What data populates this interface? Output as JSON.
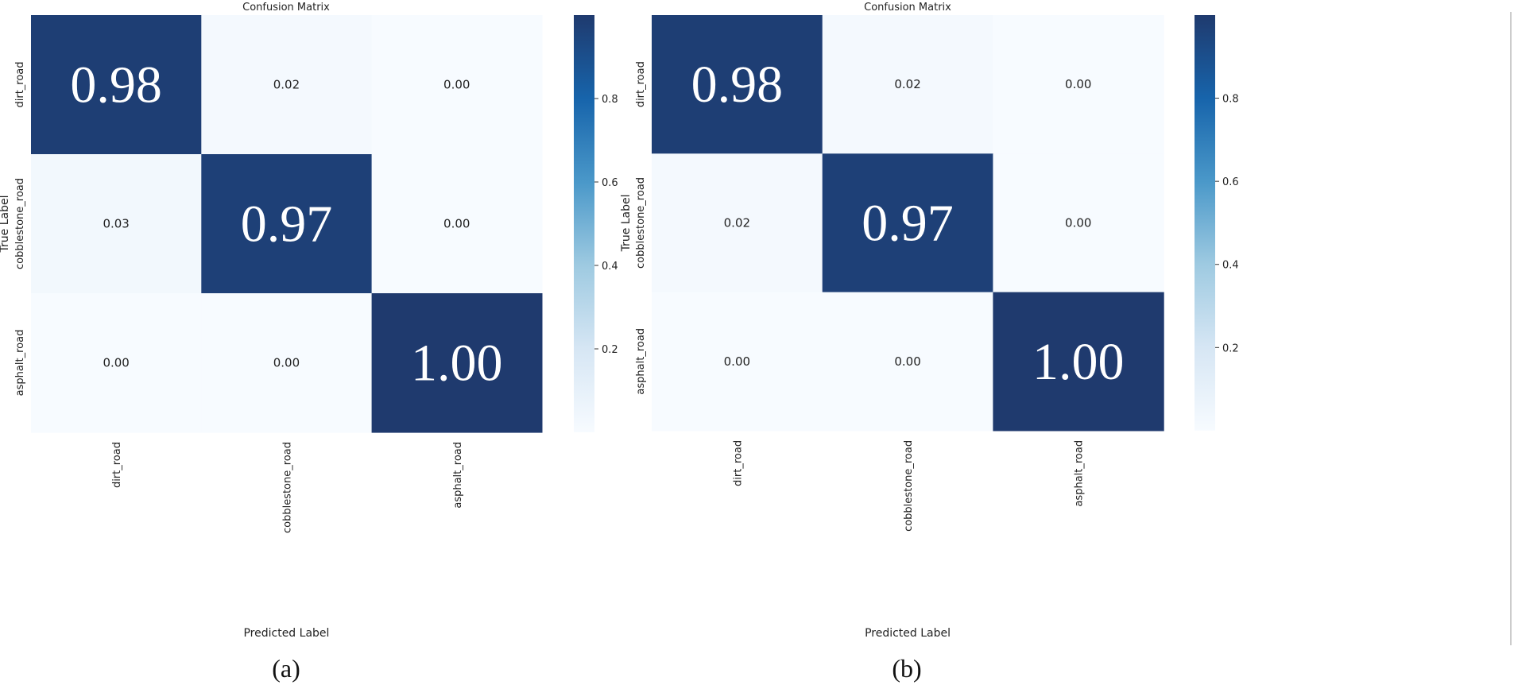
{
  "chart_data": [
    {
      "type": "heatmap",
      "title": "Confusion Matrix",
      "xlabel": "Predicted Label",
      "ylabel": "True Label",
      "x_categories": [
        "dirt_road",
        "cobblestone_road",
        "asphalt_road"
      ],
      "y_categories": [
        "dirt_road",
        "cobblestone_road",
        "asphalt_road"
      ],
      "values": [
        [
          0.98,
          0.02,
          0.0
        ],
        [
          0.03,
          0.97,
          0.0
        ],
        [
          0.0,
          0.0,
          1.0
        ]
      ],
      "colorbar": {
        "range": [
          0,
          1
        ],
        "ticks": [
          0.2,
          0.4,
          0.6,
          0.8
        ],
        "colormap": "Blues"
      },
      "caption": "(a)"
    },
    {
      "type": "heatmap",
      "title": "Confusion Matrix",
      "xlabel": "Predicted Label",
      "ylabel": "True Label",
      "x_categories": [
        "dirt_road",
        "cobblestone_road",
        "asphalt_road"
      ],
      "y_categories": [
        "dirt_road",
        "cobblestone_road",
        "asphalt_road"
      ],
      "values": [
        [
          0.98,
          0.02,
          0.0
        ],
        [
          0.02,
          0.97,
          0.0
        ],
        [
          0.0,
          0.0,
          1.0
        ]
      ],
      "colorbar": {
        "range": [
          0,
          1
        ],
        "ticks": [
          0.2,
          0.4,
          0.6,
          0.8
        ],
        "colormap": "Blues"
      },
      "caption": "(b)"
    }
  ],
  "colors": {
    "dark": "#1f3a6e",
    "light": "#f7fbff",
    "mid": "#3a8cc5"
  }
}
